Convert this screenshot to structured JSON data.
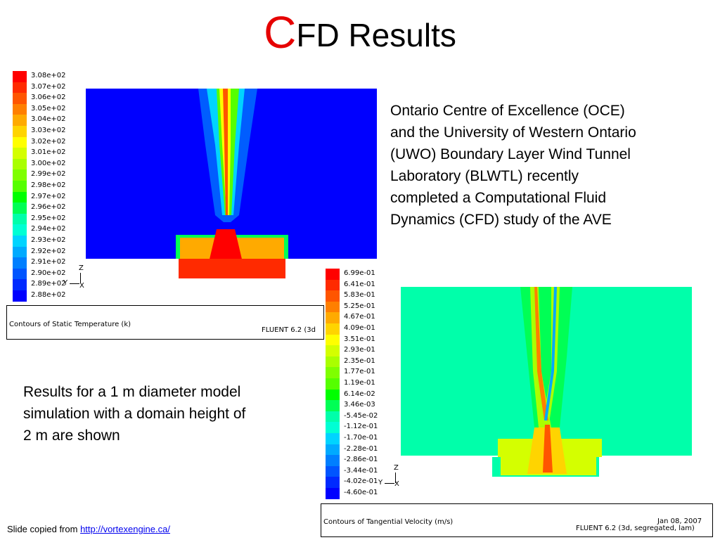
{
  "slide": {
    "title_first_letter": "C",
    "title_rest": "FD Results",
    "paragraph_right": "Ontario Centre of Excellence (OCE)\nand the University of Western Ontario\n(UWO) Boundary Layer Wind Tunnel\nLaboratory (BLWTL) recently\ncompleted a Computational Fluid\nDynamics (CFD) study of the AVE",
    "paragraph_left": "Results for a 1 m diameter model\nsimulation with a domain height of\n2 m are shown",
    "footer_prefix": "Slide copied from ",
    "footer_link": "http://vortexengine.ca/"
  },
  "temperature_plot": {
    "legend": [
      "3.08e+02",
      "3.07e+02",
      "3.06e+02",
      "3.05e+02",
      "3.04e+02",
      "3.03e+02",
      "3.02e+02",
      "3.01e+02",
      "3.00e+02",
      "2.99e+02",
      "2.98e+02",
      "2.97e+02",
      "2.96e+02",
      "2.95e+02",
      "2.94e+02",
      "2.93e+02",
      "2.92e+02",
      "2.91e+02",
      "2.90e+02",
      "2.89e+02",
      "2.88e+02"
    ],
    "caption": "Contours of Static Temperature (k)",
    "software": "FLUENT 6.2 (3d",
    "axis_z": "Z",
    "axis_y": "Y",
    "axis_x": "X"
  },
  "velocity_plot": {
    "legend": [
      "6.99e-01",
      "6.41e-01",
      "5.83e-01",
      "5.25e-01",
      "4.67e-01",
      "4.09e-01",
      "3.51e-01",
      "2.93e-01",
      "2.35e-01",
      "1.77e-01",
      "1.19e-01",
      "6.14e-02",
      "3.46e-03",
      "-5.45e-02",
      "-1.12e-01",
      "-1.70e-01",
      "-2.28e-01",
      "-2.86e-01",
      "-3.44e-01",
      "-4.02e-01",
      "-4.60e-01"
    ],
    "caption": "Contours of Tangential Velocity (m/s)",
    "date": "Jan 08, 2007",
    "software": "FLUENT 6.2 (3d, segregated, lam)",
    "axis_z": "Z",
    "axis_y": "Y",
    "axis_x": "X"
  },
  "colormap": [
    "#ff0000",
    "#ff2a00",
    "#ff5500",
    "#ff7f00",
    "#ffaa00",
    "#ffd400",
    "#ffff00",
    "#d4ff00",
    "#aaff00",
    "#7fff00",
    "#55ff00",
    "#00ff00",
    "#00ff55",
    "#00ffaa",
    "#00ffd4",
    "#00d4ff",
    "#00aaff",
    "#007fff",
    "#0055ff",
    "#002aff",
    "#0000ff"
  ]
}
